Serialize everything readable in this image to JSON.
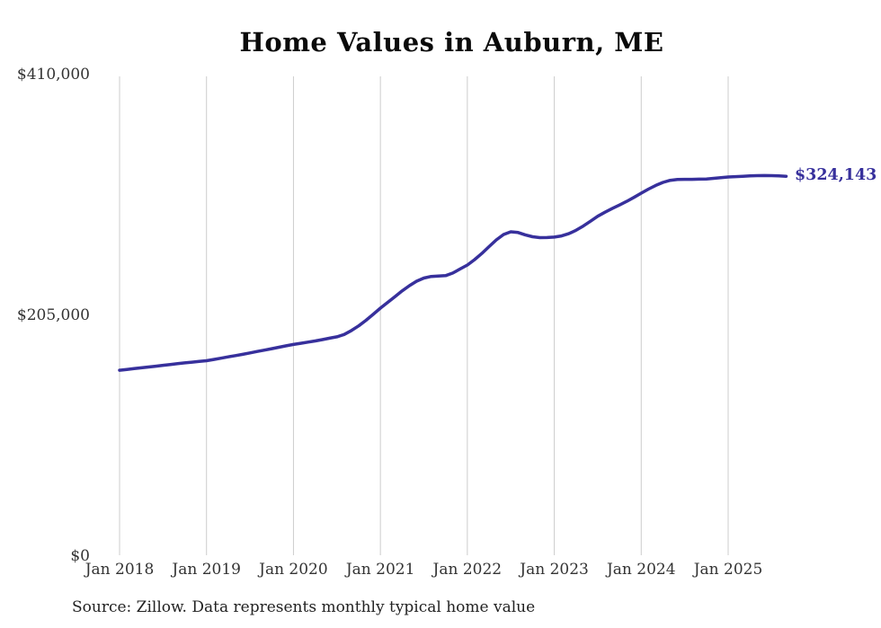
{
  "chart": {
    "title": "Home Values in Auburn, ME",
    "end_label": "$324,143",
    "source": "Source: Zillow. Data represents monthly typical home value",
    "colors": {
      "line": "#37309c",
      "grid": "#cccccc",
      "tick_text": "#333333",
      "title_text": "#0a0a0a",
      "source_text": "#222222",
      "end_label_text": "#37309c"
    }
  },
  "chart_data": {
    "type": "line",
    "title": "Home Values in Auburn, ME",
    "series_name": "Typical home value (monthly)",
    "start_month": "2018-01",
    "end_month": "2025-09",
    "frequency": "monthly",
    "values": [
      159000,
      159700,
      160400,
      161100,
      161800,
      162500,
      163200,
      163900,
      164600,
      165300,
      165900,
      166500,
      167100,
      168200,
      169300,
      170400,
      171500,
      172600,
      173800,
      175000,
      176200,
      177400,
      178600,
      179800,
      181000,
      182000,
      183000,
      184000,
      185100,
      186300,
      187500,
      189500,
      192800,
      196800,
      201500,
      206600,
      211900,
      216800,
      221700,
      226600,
      231000,
      234800,
      237500,
      238900,
      239300,
      239600,
      241800,
      245200,
      248600,
      253200,
      258500,
      264300,
      270000,
      274600,
      276900,
      276300,
      274300,
      272700,
      271900,
      272000,
      272400,
      273400,
      275300,
      278200,
      281800,
      285900,
      290100,
      293600,
      296700,
      299700,
      302800,
      306200,
      309800,
      313200,
      316400,
      319000,
      320700,
      321400,
      321600,
      321600,
      321700,
      321900,
      322400,
      323000,
      323600,
      323900,
      324200,
      324500,
      324700,
      324800,
      324700,
      324500,
      324143
    ],
    "last_value": 324143,
    "annotation": "$324,143",
    "x_ticks": [
      {
        "label": "Jan 2018",
        "month_index": 0
      },
      {
        "label": "Jan 2019",
        "month_index": 12
      },
      {
        "label": "Jan 2020",
        "month_index": 24
      },
      {
        "label": "Jan 2021",
        "month_index": 36
      },
      {
        "label": "Jan 2022",
        "month_index": 48
      },
      {
        "label": "Jan 2023",
        "month_index": 60
      },
      {
        "label": "Jan 2024",
        "month_index": 72
      },
      {
        "label": "Jan 2025",
        "month_index": 84
      }
    ],
    "y_ticks": [
      {
        "value": 410000,
        "label": "$410,000"
      },
      {
        "value": 205000,
        "label": "$205,000"
      },
      {
        "value": 0,
        "label": "$0"
      }
    ],
    "ylim": [
      0,
      410000
    ],
    "grid": "vertical-only",
    "legend": "none"
  }
}
